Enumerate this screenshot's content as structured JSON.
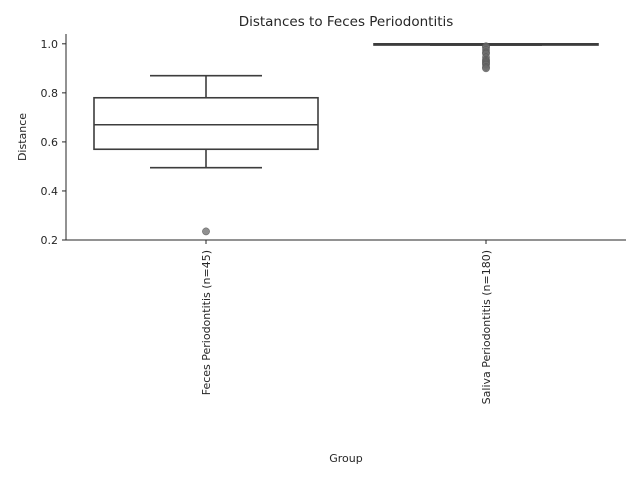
{
  "chart_data": {
    "type": "box",
    "title": "Distances to Feces Periodontitis",
    "xlabel": "Group",
    "ylabel": "Distance",
    "ylim": [
      0.2,
      1.04
    ],
    "yticks": [
      "0.2",
      "0.4",
      "0.6",
      "0.8",
      "1.0"
    ],
    "grid": false,
    "categories": [
      "Feces Periodontitis (n=45)",
      "Saliva Periodontitis (n=180)"
    ],
    "boxes": [
      {
        "category": "Feces Periodontitis (n=45)",
        "whisker_low": 0.495,
        "q1": 0.57,
        "median": 0.67,
        "q3": 0.78,
        "whisker_high": 0.87,
        "outliers": [
          0.235
        ]
      },
      {
        "category": "Saliva Periodontitis (n=180)",
        "whisker_low": 0.995,
        "q1": 0.995,
        "median": 1.0,
        "q3": 1.0,
        "whisker_high": 1.0,
        "outliers": [
          0.99,
          0.985,
          0.975,
          0.965,
          0.96,
          0.945,
          0.935,
          0.93,
          0.925,
          0.92,
          0.915,
          0.905,
          0.9
        ]
      }
    ]
  }
}
